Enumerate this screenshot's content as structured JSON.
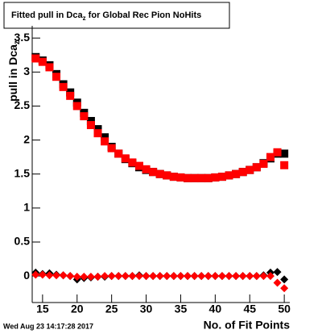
{
  "chart_data": {
    "type": "scatter",
    "title": [
      "Fitted pull in Dca",
      "z",
      " for Global Rec Pion NoHits"
    ],
    "y_label": [
      "pull in Dca",
      "z"
    ],
    "x_label": "No. of Fit Points",
    "footer": "Wed Aug 23 14:17:28 2017",
    "x": [
      14,
      15,
      16,
      17,
      18,
      19,
      20,
      21,
      22,
      23,
      24,
      25,
      26,
      27,
      28,
      29,
      30,
      31,
      32,
      33,
      34,
      35,
      36,
      37,
      38,
      39,
      40,
      41,
      42,
      43,
      44,
      45,
      46,
      47,
      48,
      49,
      50
    ],
    "series": [
      {
        "marker": "square",
        "color": "#000000",
        "values": [
          3.22,
          3.17,
          3.1,
          2.97,
          2.82,
          2.7,
          2.55,
          2.4,
          2.28,
          2.16,
          2.04,
          1.9,
          1.8,
          1.72,
          1.66,
          1.6,
          1.56,
          1.53,
          1.5,
          1.48,
          1.46,
          1.45,
          1.44,
          1.44,
          1.44,
          1.44,
          1.45,
          1.46,
          1.48,
          1.5,
          1.53,
          1.56,
          1.6,
          1.66,
          1.73,
          1.8,
          1.8
        ]
      },
      {
        "marker": "square",
        "color": "#ff0000",
        "values": [
          3.2,
          3.15,
          3.07,
          2.93,
          2.78,
          2.65,
          2.5,
          2.35,
          2.22,
          2.1,
          1.98,
          1.88,
          1.8,
          1.73,
          1.67,
          1.62,
          1.57,
          1.53,
          1.5,
          1.48,
          1.46,
          1.45,
          1.44,
          1.44,
          1.44,
          1.44,
          1.45,
          1.46,
          1.48,
          1.5,
          1.53,
          1.56,
          1.6,
          1.65,
          1.75,
          1.82,
          1.63
        ]
      },
      {
        "marker": "diamond",
        "color": "#000000",
        "values": [
          0.05,
          0.03,
          0.04,
          0.02,
          0.01,
          0,
          -0.05,
          -0.03,
          -0.02,
          -0.01,
          -0.01,
          0,
          0,
          0,
          0,
          0.01,
          0,
          0,
          0,
          0,
          0,
          0,
          0,
          0,
          0,
          0,
          0,
          0,
          0,
          0,
          0,
          0,
          0,
          0.01,
          0.05,
          0.06,
          -0.05
        ]
      },
      {
        "marker": "diamond",
        "color": "#ff0000",
        "values": [
          0.02,
          0.02,
          0.01,
          0.01,
          0.01,
          0,
          -0.01,
          -0.01,
          -0.01,
          -0.01,
          0,
          0,
          0,
          0,
          0,
          0,
          0,
          0,
          0,
          0,
          0,
          0,
          0,
          0,
          0,
          0,
          0,
          0,
          0,
          0,
          0,
          0,
          0,
          0,
          0,
          -0.1,
          -0.18
        ]
      }
    ],
    "xlim": [
      13.5,
      50.8
    ],
    "ylim": [
      -0.39,
      3.68
    ],
    "xticks": [
      15,
      20,
      25,
      30,
      35,
      40,
      45,
      50
    ],
    "yticks": [
      0,
      0.5,
      1,
      1.5,
      2,
      2.5,
      3,
      3.5
    ]
  }
}
